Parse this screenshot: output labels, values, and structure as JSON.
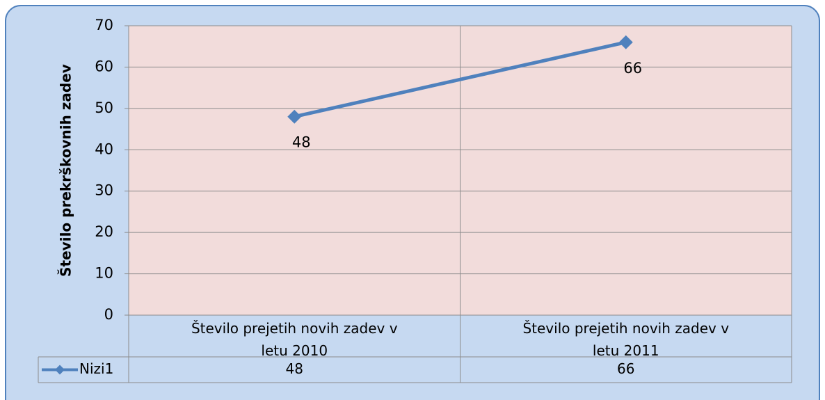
{
  "chart_data": {
    "type": "line",
    "y_axis_label": "Število prekrškovnih zadev",
    "categories": [
      "Število prejetih novih zadev v letu 2010",
      "Število prejetih novih zadev v letu 2011"
    ],
    "series": [
      {
        "name": "Nizi1",
        "color": "#4f81bd",
        "values": [
          48,
          66
        ]
      }
    ],
    "ylim": [
      0,
      70
    ],
    "yticks": [
      0,
      10,
      20,
      30,
      40,
      50,
      60,
      70
    ],
    "grid": true,
    "data_table": true
  }
}
